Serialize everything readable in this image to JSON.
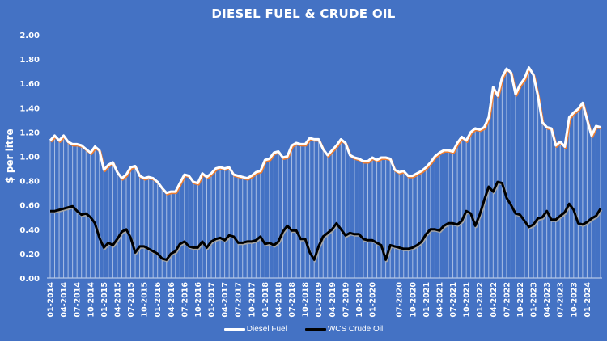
{
  "chart_data": {
    "type": "line",
    "title": "DIESEL FUEL & CRUDE OIL",
    "xlabel": "",
    "ylabel": "$ per litre",
    "ylim": [
      0,
      2.0
    ],
    "yticks": [
      "0.00",
      "0.20",
      "0.40",
      "0.60",
      "0.80",
      "1.00",
      "1.20",
      "1.40",
      "1.60",
      "1.80",
      "2.00"
    ],
    "grid": "vertical drop lines per month (white, translucent)",
    "legend_position": "bottom",
    "x_tick_labels": [
      "01-2014",
      "04-2014",
      "07-2014",
      "10-2014",
      "01-2015",
      "04-2015",
      "07-2015",
      "10-2015",
      "01-2016",
      "04-2016",
      "07-2016",
      "10-2016",
      "01-2017",
      "04-2017",
      "07-2017",
      "10-2017",
      "01-2018",
      "04-2018",
      "07-2018",
      "10-2018",
      "01-2019",
      "04-2019",
      "07-2019",
      "10-2019",
      "01-2020",
      "07-2020",
      "10-2020",
      "01-2021",
      "04-2021",
      "07-2021",
      "10-2021",
      "01-2022",
      "04-2022",
      "07-2022",
      "10-2022",
      "01-2023",
      "04-2023",
      "07-2023",
      "10-2023",
      "01-2024"
    ],
    "x_start": "01-2014",
    "x_end": "04-2024",
    "x_step": "monthly",
    "series": [
      {
        "name": "Diesel Fuel",
        "color": "#FFFFFF",
        "shadow_color": "#ED7D31",
        "values": [
          1.13,
          1.17,
          1.13,
          1.17,
          1.12,
          1.1,
          1.1,
          1.09,
          1.06,
          1.03,
          1.08,
          1.05,
          0.89,
          0.93,
          0.95,
          0.87,
          0.82,
          0.85,
          0.91,
          0.92,
          0.84,
          0.82,
          0.83,
          0.82,
          0.79,
          0.74,
          0.7,
          0.71,
          0.71,
          0.78,
          0.85,
          0.84,
          0.79,
          0.78,
          0.86,
          0.83,
          0.86,
          0.9,
          0.91,
          0.9,
          0.91,
          0.85,
          0.84,
          0.83,
          0.82,
          0.84,
          0.87,
          0.88,
          0.97,
          0.98,
          1.03,
          1.04,
          0.99,
          1.0,
          1.09,
          1.11,
          1.1,
          1.1,
          1.15,
          1.14,
          1.14,
          1.06,
          1.01,
          1.05,
          1.09,
          1.14,
          1.11,
          1.01,
          0.99,
          0.98,
          0.96,
          0.96,
          0.99,
          0.97,
          0.99,
          0.99,
          0.98,
          0.89,
          0.87,
          0.88,
          0.84,
          0.84,
          0.86,
          0.88,
          0.91,
          0.95,
          1.0,
          1.03,
          1.05,
          1.05,
          1.04,
          1.11,
          1.16,
          1.13,
          1.2,
          1.23,
          1.22,
          1.24,
          1.32,
          1.57,
          1.5,
          1.65,
          1.72,
          1.69,
          1.51,
          1.59,
          1.64,
          1.73,
          1.67,
          1.5,
          1.28,
          1.24,
          1.23,
          1.09,
          1.12,
          1.08,
          1.32,
          1.36,
          1.39,
          1.44,
          1.3,
          1.17,
          1.25,
          1.24
        ]
      },
      {
        "name": "WCS Crude Oil",
        "color": "#000000",
        "shadow_color": "#A5A5A5",
        "values": [
          0.55,
          0.55,
          0.56,
          0.57,
          0.58,
          0.59,
          0.55,
          0.52,
          0.53,
          0.5,
          0.45,
          0.33,
          0.25,
          0.29,
          0.27,
          0.32,
          0.38,
          0.4,
          0.33,
          0.21,
          0.26,
          0.26,
          0.24,
          0.22,
          0.2,
          0.16,
          0.15,
          0.2,
          0.22,
          0.28,
          0.3,
          0.26,
          0.25,
          0.25,
          0.3,
          0.25,
          0.3,
          0.32,
          0.33,
          0.31,
          0.35,
          0.34,
          0.29,
          0.29,
          0.3,
          0.3,
          0.31,
          0.34,
          0.28,
          0.29,
          0.27,
          0.3,
          0.38,
          0.43,
          0.39,
          0.39,
          0.32,
          0.32,
          0.21,
          0.15,
          0.26,
          0.34,
          0.37,
          0.4,
          0.45,
          0.4,
          0.35,
          0.37,
          0.36,
          0.36,
          0.32,
          0.31,
          0.31,
          0.29,
          0.27,
          0.15,
          0.27,
          0.26,
          0.25,
          0.24,
          0.24,
          0.25,
          0.27,
          0.3,
          0.36,
          0.4,
          0.4,
          0.39,
          0.43,
          0.45,
          0.45,
          0.44,
          0.47,
          0.55,
          0.53,
          0.43,
          0.52,
          0.64,
          0.75,
          0.71,
          0.79,
          0.78,
          0.66,
          0.6,
          0.53,
          0.52,
          0.47,
          0.42,
          0.44,
          0.49,
          0.5,
          0.55,
          0.48,
          0.48,
          0.51,
          0.54,
          0.61,
          0.56,
          0.45,
          0.44,
          0.46,
          0.49,
          0.51,
          0.57
        ]
      }
    ]
  },
  "legend": {
    "items": [
      {
        "label": "Diesel Fuel",
        "color": "#FFFFFF"
      },
      {
        "label": "WCS Crude Oil",
        "color": "#000000"
      }
    ]
  },
  "colors": {
    "background": "#4472C4",
    "axis_text": "#FFFFFF"
  }
}
